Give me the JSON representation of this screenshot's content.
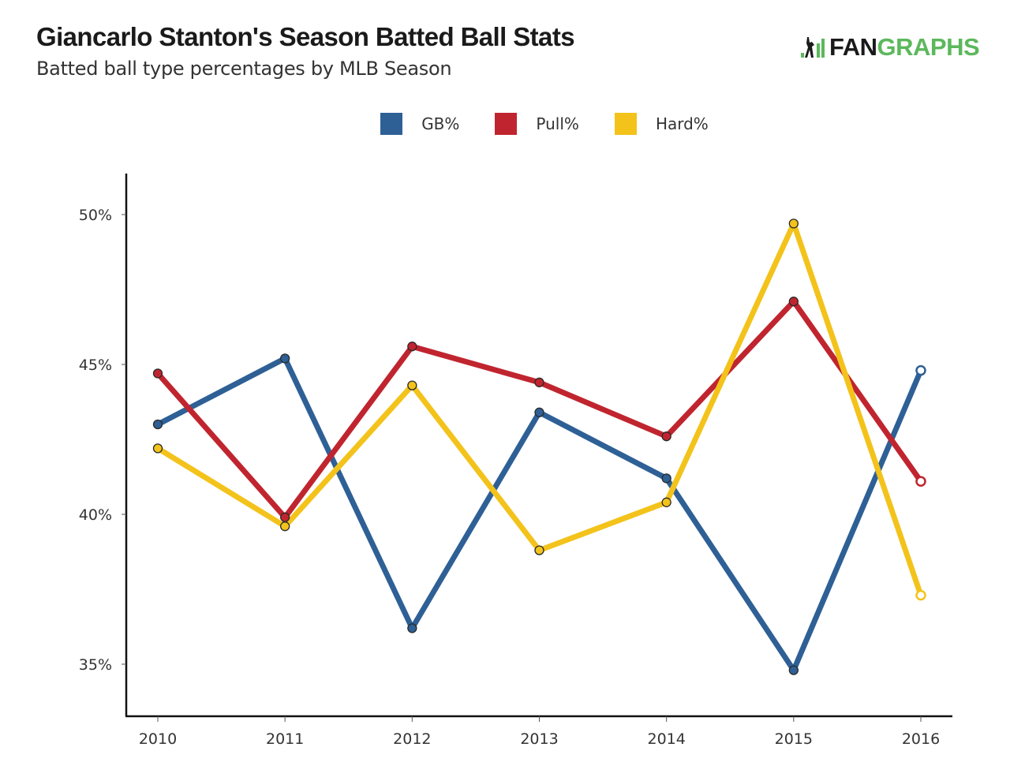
{
  "header": {
    "title": "Giancarlo Stanton's Season Batted Ball Stats",
    "subtitle": "Batted ball type percentages by MLB Season"
  },
  "logo": {
    "text_dark": "FAN",
    "text_green": "GRAPHS",
    "icon": "batter-bars-icon",
    "colors": {
      "dark": "#1a1a1a",
      "green": "#5cb85c"
    }
  },
  "chart_data": {
    "type": "line",
    "title": "Giancarlo Stanton's Season Batted Ball Stats",
    "subtitle": "Batted ball type percentages by MLB Season",
    "xlabel": "",
    "ylabel": "",
    "x": [
      2010,
      2011,
      2012,
      2013,
      2014,
      2015,
      2016
    ],
    "x_tick_labels": [
      "2010",
      "2011",
      "2012",
      "2013",
      "2014",
      "2015",
      "2016"
    ],
    "y_ticks": [
      35,
      40,
      45,
      50
    ],
    "y_tick_labels": [
      "35%",
      "40%",
      "45%",
      "50%"
    ],
    "ylim": [
      33.3,
      51.3
    ],
    "grid": false,
    "legend_position": "top-center",
    "series": [
      {
        "name": "GB%",
        "color": "#2e6096",
        "values": [
          43.0,
          45.2,
          36.2,
          43.4,
          41.2,
          34.8,
          44.8
        ],
        "last_point_hollow": true
      },
      {
        "name": "Pull%",
        "color": "#c0252f",
        "values": [
          44.7,
          39.9,
          45.6,
          44.4,
          42.6,
          47.1,
          41.1
        ],
        "last_point_hollow": true
      },
      {
        "name": "Hard%",
        "color": "#f3c31b",
        "values": [
          42.2,
          39.6,
          44.3,
          38.8,
          40.4,
          49.7,
          37.3
        ],
        "last_point_hollow": true
      }
    ]
  }
}
